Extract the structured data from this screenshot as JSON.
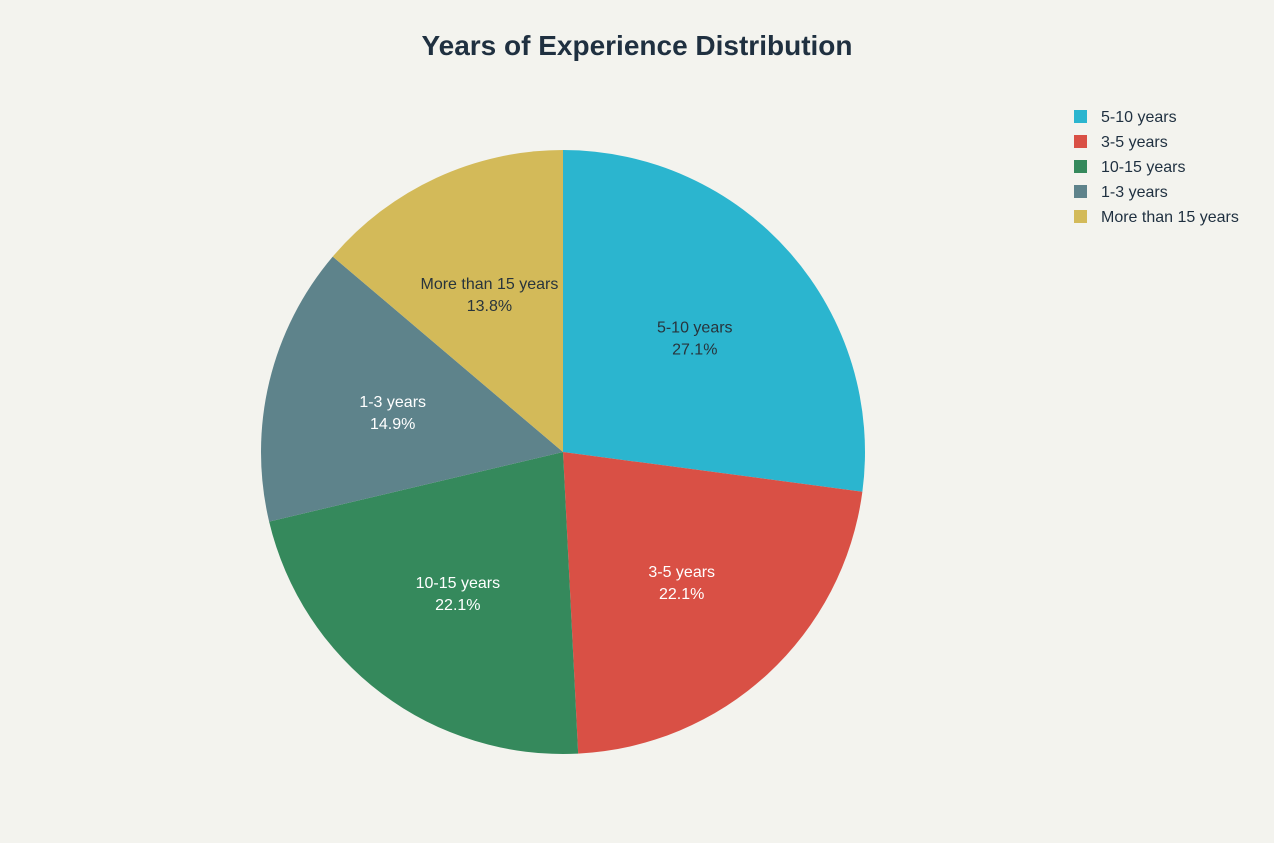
{
  "chart_data": {
    "type": "pie",
    "title": "Years of Experience Distribution",
    "categories": [
      "5-10 years",
      "3-5 years",
      "10-15 years",
      "1-3 years",
      "More than 15 years"
    ],
    "values": [
      27.1,
      22.1,
      22.1,
      14.9,
      13.8
    ],
    "value_labels": [
      "27.1%",
      "22.1%",
      "22.1%",
      "14.9%",
      "13.8%"
    ],
    "colors": [
      "#2bb5cf",
      "#d95045",
      "#35895c",
      "#5e838b",
      "#d3ba59"
    ],
    "label_colors": [
      "#28343c",
      "#ffffff",
      "#ffffff",
      "#ffffff",
      "#28343c"
    ],
    "legend": {
      "position": "top-right",
      "items": [
        "5-10 years",
        "3-5 years",
        "10-15 years",
        "1-3 years",
        "More than 15 years"
      ]
    },
    "slice_order_description": "clockwise",
    "start_angle_deg": 0
  }
}
